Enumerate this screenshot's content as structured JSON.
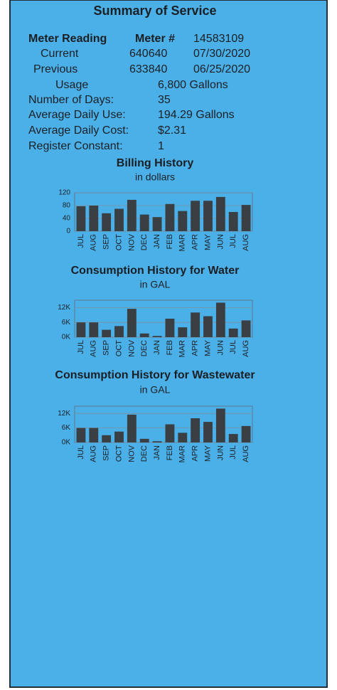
{
  "title": "Summary of Service",
  "meter": {
    "heading": "Meter Reading",
    "number_label": "Meter #",
    "number": "14583109",
    "rows": [
      {
        "label": "Current",
        "reading": "640640",
        "date": "07/30/2020"
      },
      {
        "label": "Previous",
        "reading": "633840",
        "date": "06/25/2020"
      }
    ],
    "usage_label": "Usage",
    "usage": "6,800 Gallons"
  },
  "details": [
    {
      "label": "Number of Days:",
      "value": "35"
    },
    {
      "label": "Average Daily Use:",
      "value": "194.29 Gallons"
    },
    {
      "label": "Average Daily Cost:",
      "value": "$2.31"
    },
    {
      "label": "Register Constant:",
      "value": "1"
    }
  ],
  "chart_data": [
    {
      "type": "bar",
      "title": "Billing History",
      "subtitle": "in dollars",
      "color": "#3a3f44",
      "categories": [
        "JUL",
        "AUG",
        "SEP",
        "OCT",
        "NOV",
        "DEC",
        "JAN",
        "FEB",
        "MAR",
        "APR",
        "MAY",
        "JUN",
        "JUL",
        "AUG"
      ],
      "values": [
        78,
        80,
        56,
        70,
        98,
        52,
        44,
        85,
        63,
        95,
        95,
        107,
        60,
        82
      ],
      "ylim": [
        0,
        120
      ],
      "yticks": [
        0,
        40,
        80,
        120
      ],
      "grid": true
    },
    {
      "type": "bar",
      "title": "Consumption History for Water",
      "subtitle": "in GAL",
      "color": "#3a3f44",
      "categories": [
        "JUL",
        "AUG",
        "SEP",
        "OCT",
        "NOV",
        "DEC",
        "JAN",
        "FEB",
        "MAR",
        "APR",
        "MAY",
        "JUN",
        "JUL",
        "AUG"
      ],
      "values": [
        6000,
        6000,
        3000,
        4500,
        11500,
        1500,
        500,
        7500,
        4000,
        10000,
        8500,
        14000,
        3500,
        6800
      ],
      "ylim": [
        0,
        15000
      ],
      "yticks": [
        {
          "value": 0,
          "label": "0K"
        },
        {
          "value": 6000,
          "label": "6K"
        },
        {
          "value": 12000,
          "label": "12K"
        }
      ],
      "grid": true
    },
    {
      "type": "bar",
      "title": "Consumption History for Wastewater",
      "subtitle": "in GAL",
      "color": "#3a3f44",
      "categories": [
        "JUL",
        "AUG",
        "SEP",
        "OCT",
        "NOV",
        "DEC",
        "JAN",
        "FEB",
        "MAR",
        "APR",
        "MAY",
        "JUN",
        "JUL",
        "AUG"
      ],
      "values": [
        6000,
        6000,
        3000,
        4500,
        11500,
        1500,
        500,
        7500,
        4000,
        10000,
        8500,
        14000,
        3500,
        6800
      ],
      "ylim": [
        0,
        15000
      ],
      "yticks": [
        {
          "value": 0,
          "label": "0K"
        },
        {
          "value": 6000,
          "label": "6K"
        },
        {
          "value": 12000,
          "label": "12K"
        }
      ],
      "grid": true
    }
  ]
}
